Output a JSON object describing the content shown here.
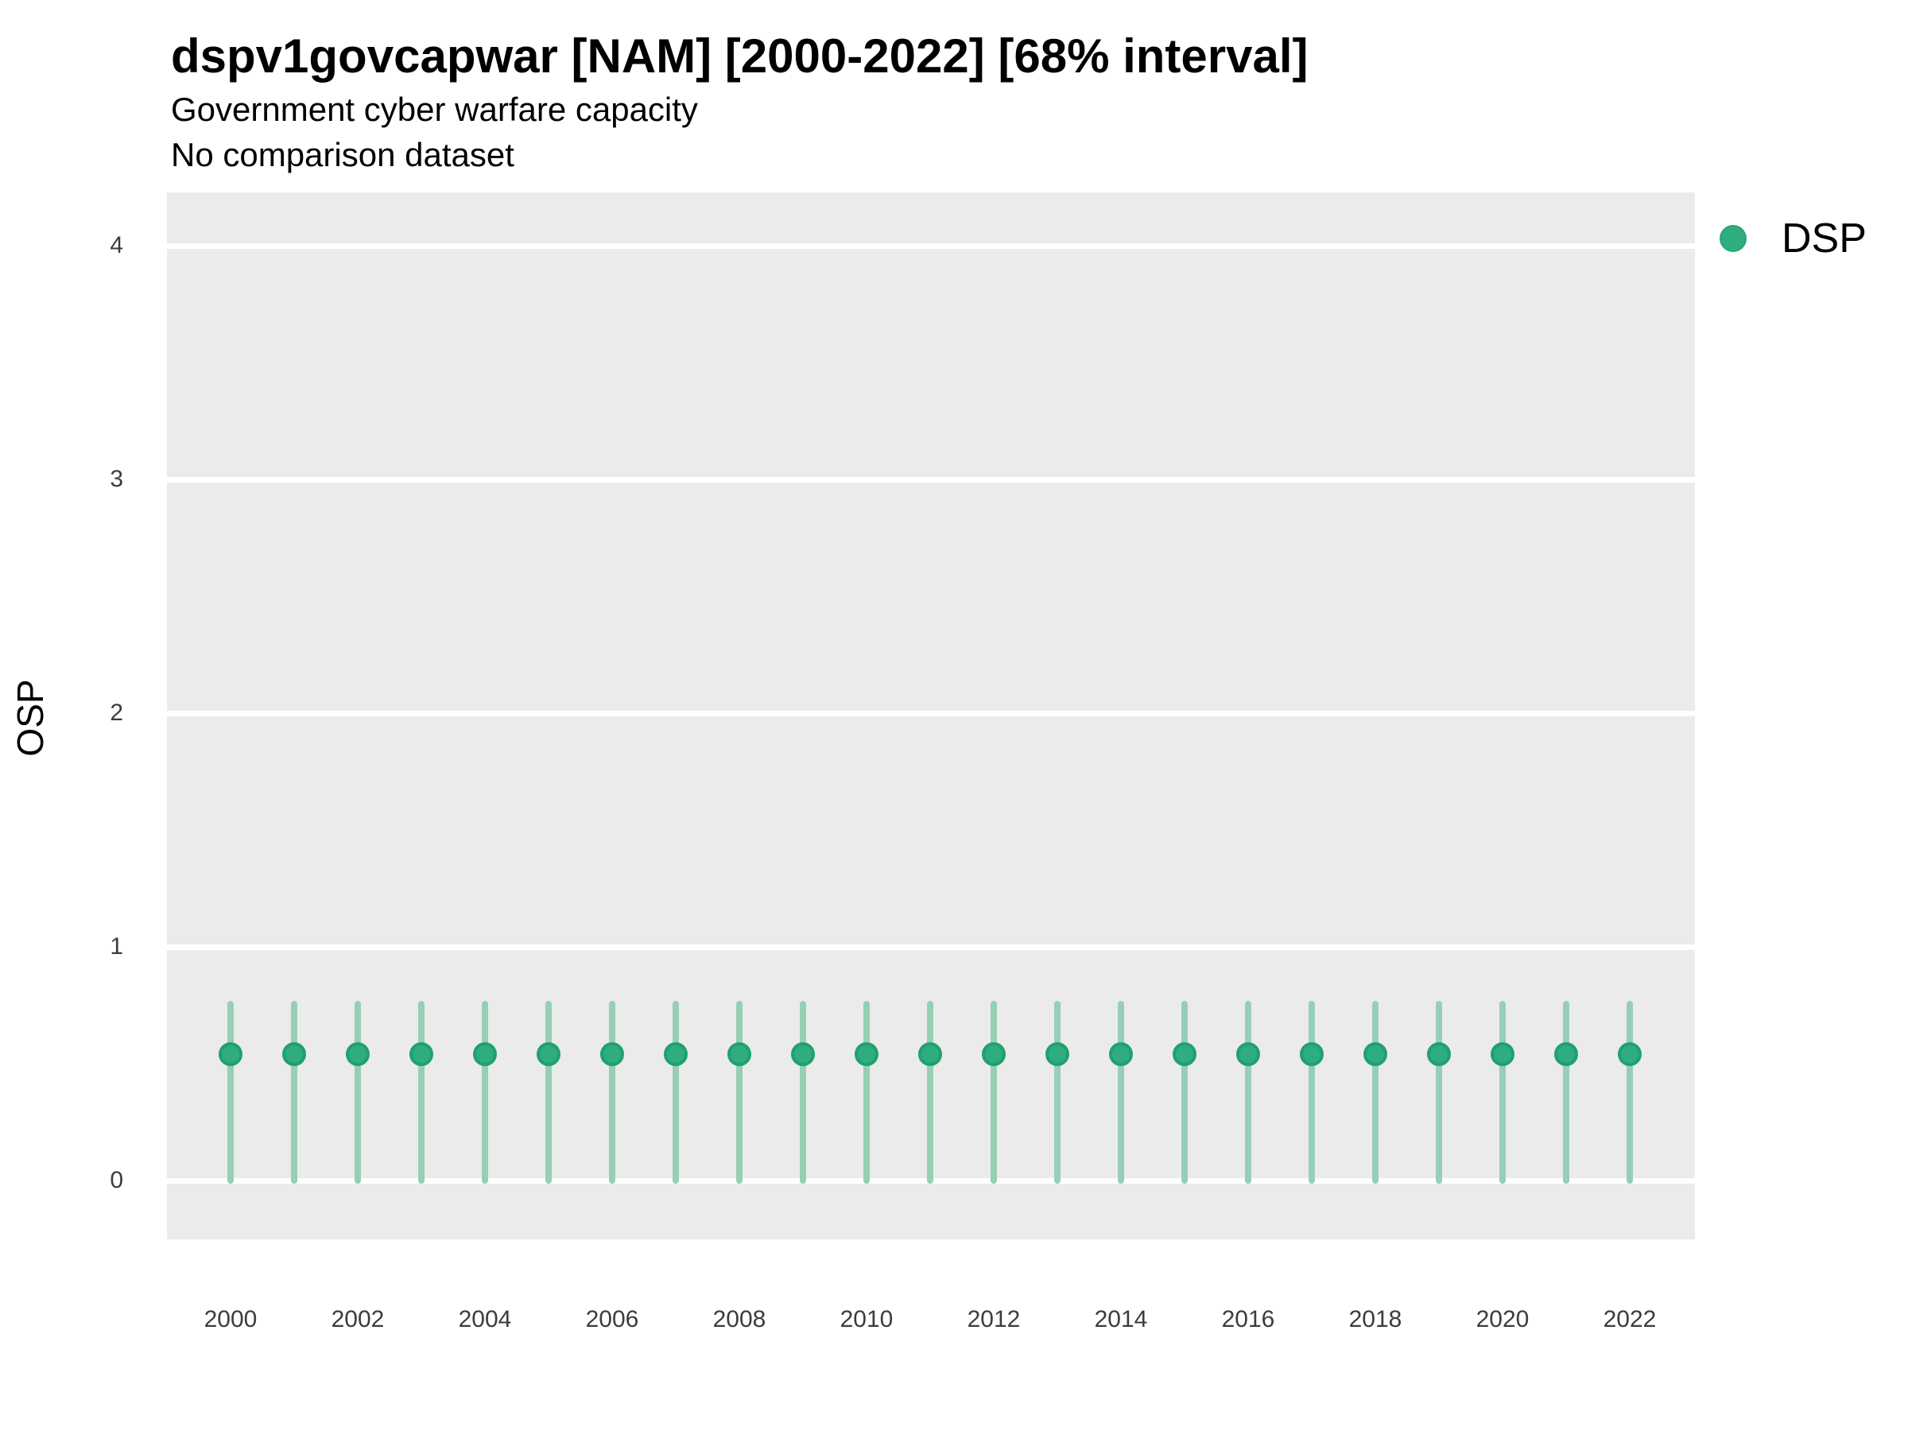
{
  "colors": {
    "panel_background": "#EBEBEB",
    "gridline": "#FFFFFF",
    "point_fill": "#2FAD7E",
    "point_stroke": "#1FA073",
    "interval_bar": "#97CFB6",
    "text": "#000000",
    "tick_text": "#3C3C3C"
  },
  "chart_data": {
    "type": "scatter",
    "title": "dspv1govcapwar [NAM] [2000-2022] [68% interval]",
    "subtitle": "Government cyber warfare capacity",
    "subtitle2": "No comparison dataset",
    "xlabel": "",
    "ylabel": "OSP",
    "ylim": [
      -0.25,
      4.23
    ],
    "yticks": [
      0,
      1,
      2,
      3,
      4
    ],
    "xticks": [
      2000,
      2002,
      2004,
      2006,
      2008,
      2010,
      2012,
      2014,
      2016,
      2018,
      2020,
      2022
    ],
    "grid": "major-horizontal-only",
    "legend_position": "right-top",
    "legend": [
      {
        "label": "DSP",
        "color": "#2FAD7E"
      }
    ],
    "interval_level": "68%",
    "x": [
      2000,
      2001,
      2002,
      2003,
      2004,
      2005,
      2006,
      2007,
      2008,
      2009,
      2010,
      2011,
      2012,
      2013,
      2014,
      2015,
      2016,
      2017,
      2018,
      2019,
      2020,
      2021,
      2022
    ],
    "series": [
      {
        "name": "DSP",
        "values": [
          0.54,
          0.54,
          0.54,
          0.54,
          0.54,
          0.54,
          0.54,
          0.54,
          0.54,
          0.54,
          0.54,
          0.54,
          0.54,
          0.54,
          0.54,
          0.54,
          0.54,
          0.54,
          0.54,
          0.54,
          0.54,
          0.54,
          0.54
        ],
        "lower": [
          0.0,
          0.0,
          0.0,
          0.0,
          0.0,
          0.0,
          0.0,
          0.0,
          0.0,
          0.0,
          0.0,
          0.0,
          0.0,
          0.0,
          0.0,
          0.0,
          0.0,
          0.0,
          0.0,
          0.0,
          0.0,
          0.0,
          0.0
        ],
        "upper": [
          0.77,
          0.77,
          0.77,
          0.77,
          0.77,
          0.77,
          0.77,
          0.77,
          0.77,
          0.77,
          0.77,
          0.77,
          0.77,
          0.77,
          0.77,
          0.77,
          0.77,
          0.77,
          0.77,
          0.77,
          0.77,
          0.77,
          0.77
        ]
      }
    ]
  }
}
